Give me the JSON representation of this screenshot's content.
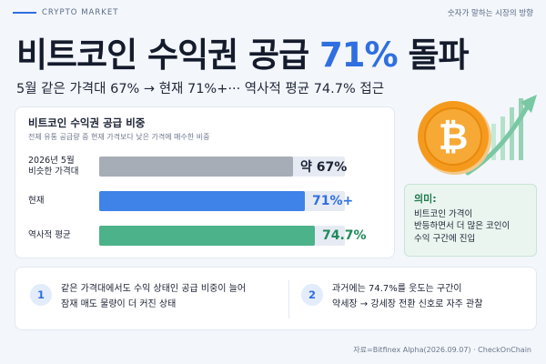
{
  "header": {
    "tag": "CRYPTO MARKET",
    "right_text": "숫자가 말하는 시장의 방향"
  },
  "headline": {
    "prefix": "비트코인 수익권 공급 ",
    "highlight": "71%",
    "suffix": " 돌파"
  },
  "subline": "5월 같은 가격대 67%  → 현재 71%+··· 역사적 평균 74.7% 접근",
  "chart_data": {
    "type": "bar",
    "orientation": "horizontal",
    "title": "비트코인 수익권 공급 비중",
    "subtitle": "전체 유통 공급량 중 현재 가격보다 낮은 가격에 매수한 비중",
    "categories": [
      "2026년 5월\n비슷한 가격대",
      "현재",
      "역사적 평균"
    ],
    "values": [
      67,
      71,
      74.7
    ],
    "value_labels": [
      "약 67%",
      "71%+",
      "74.7%"
    ],
    "colors": [
      "#a7adb7",
      "#3f82e8",
      "#4cb28a"
    ],
    "value_colors": [
      "#1b2233",
      "#2f6fe0",
      "#1f8a5b"
    ],
    "xlim": [
      0,
      85
    ]
  },
  "meaning": {
    "title": "의미:",
    "text": "비트코인 가격이\n반등하면서 더 많은 코인이\n수익 구간에 진입"
  },
  "notes": [
    {
      "num": "1",
      "text": "같은 가격대에서도 수익 상태인 공급 비중이 늘어\n잠재 매도 물량이 더 커진 상태"
    },
    {
      "num": "2",
      "text": "과거에는 74.7%를 웃도는 구간이\n약세장 → 강세장 전환 신호로 자주 관찰"
    }
  ],
  "source": "자료=Bitfinex Alpha(2026.09.07) · CheckOnChain",
  "colors": {
    "accent": "#2f6fe0",
    "green": "#1f8a5b",
    "coin": "#f59a1c",
    "background": "#f3f6fb"
  },
  "icons": {
    "coin": "bitcoin-coin-icon",
    "trend": "trend-up-arrow-icon"
  }
}
